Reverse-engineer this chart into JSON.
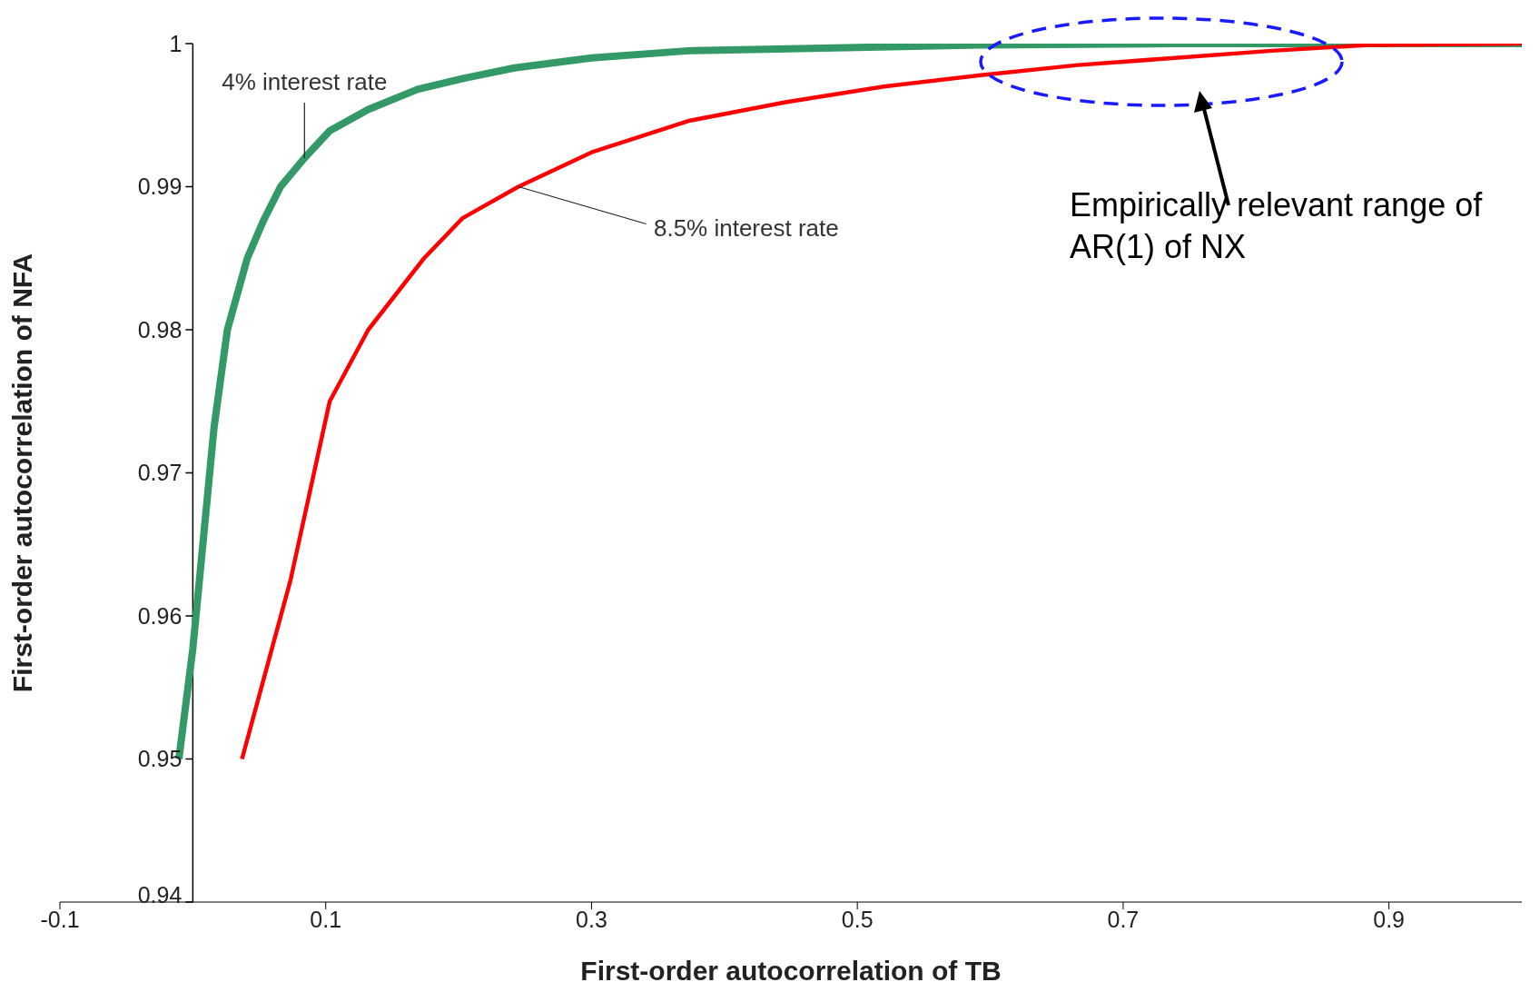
{
  "chart_data": {
    "type": "line",
    "xlabel": "First-order autocorrelation of TB",
    "ylabel": "First-order autocorrelation of NFA",
    "xlim": [
      -0.1,
      1
    ],
    "xticks": [
      -0.1,
      0.1,
      0.3,
      0.5,
      0.7,
      0.9
    ],
    "ylim": [
      0.94,
      1
    ],
    "yticks": [
      0.94,
      0.95,
      0.96,
      0.97,
      0.98,
      0.99,
      {
        "value": 1,
        "label": "1"
      }
    ],
    "marker": "none",
    "line_style": "solid",
    "series": [
      {
        "color": "#339966",
        "x": [
          -0.0105,
          0.0,
          0.016,
          0.026,
          0.041,
          0.053,
          0.066,
          0.084,
          0.103,
          0.132,
          0.169,
          0.205,
          0.242,
          0.3,
          0.373,
          0.483,
          0.593,
          0.739,
          1.0
        ],
        "values": [
          0.95,
          0.9577,
          0.9732,
          0.98,
          0.985,
          0.9876,
          0.99,
          0.992,
          0.9939,
          0.9954,
          0.9968,
          0.9976,
          0.9983,
          0.999,
          0.9995,
          0.9997,
          0.9999,
          1.0,
          1.0
        ]
      },
      {
        "color": "#ff0000",
        "x": [
          0.037,
          0.0735,
          0.103,
          0.132,
          0.174,
          0.203,
          0.245,
          0.3,
          0.373,
          0.446,
          0.52,
          0.593,
          0.666,
          0.739,
          0.812,
          0.885,
          1.0
        ],
        "values": [
          0.95,
          0.9625,
          0.975,
          0.98,
          0.985,
          0.9878,
          0.99,
          0.9924,
          0.9946,
          0.9959,
          0.997,
          0.9978,
          0.9985,
          0.999,
          0.9995,
          0.9999,
          1.0
        ]
      }
    ],
    "annotations": [
      {
        "text": "4% interest rate",
        "x": 0.084,
        "y": 0.992
      },
      {
        "text": "8.5% interest rate",
        "x": 0.245,
        "y": 0.99
      },
      "Empirically relevant range of AR(1) of NX"
    ]
  }
}
